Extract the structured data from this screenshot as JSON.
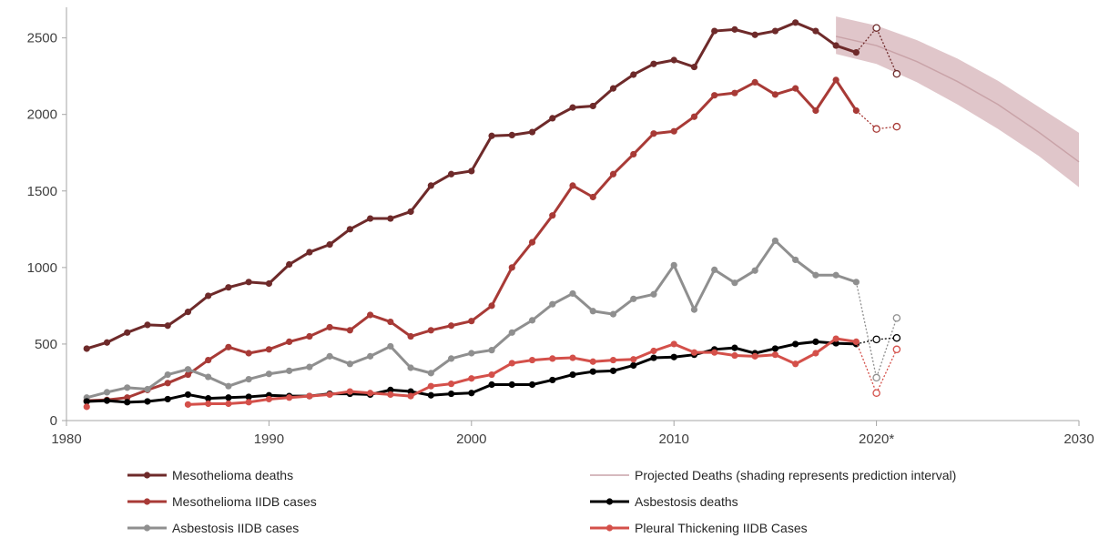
{
  "chart_data": {
    "type": "line",
    "title": "",
    "xlabel": "",
    "ylabel": "",
    "xlim": [
      1980,
      2030
    ],
    "ylim": [
      0,
      2700
    ],
    "x_ticks": [
      "1980",
      "1990",
      "2000",
      "2010",
      "2020*",
      "2030"
    ],
    "x_tick_values": [
      1980,
      1990,
      2000,
      2010,
      2020,
      2030
    ],
    "y_ticks": [
      "0",
      "500",
      "1000",
      "1500",
      "2000",
      "2500"
    ],
    "y_tick_values": [
      0,
      500,
      1000,
      1500,
      2000,
      2500
    ],
    "grid": false,
    "legend_position": "bottom",
    "series": [
      {
        "name": "Mesothelioma deaths",
        "color": "#6e2a2a",
        "x": [
          1981,
          1982,
          1983,
          1984,
          1985,
          1986,
          1987,
          1988,
          1989,
          1990,
          1991,
          1992,
          1993,
          1994,
          1995,
          1996,
          1997,
          1998,
          1999,
          2000,
          2001,
          2002,
          2003,
          2004,
          2005,
          2006,
          2007,
          2008,
          2009,
          2010,
          2011,
          2012,
          2013,
          2014,
          2015,
          2016,
          2017,
          2018,
          2019
        ],
        "values": [
          470,
          510,
          575,
          625,
          620,
          710,
          815,
          870,
          905,
          895,
          1020,
          1100,
          1150,
          1250,
          1320,
          1320,
          1365,
          1535,
          1610,
          1630,
          1860,
          1865,
          1885,
          1975,
          2045,
          2055,
          2170,
          2260,
          2330,
          2355,
          2310,
          2545,
          2555,
          2520,
          2545,
          2600,
          2545,
          2450,
          2405
        ],
        "provisional_x": [
          2020,
          2021
        ],
        "provisional_values": [
          2565,
          2265
        ]
      },
      {
        "name": "Mesothelioma IIDB cases",
        "color": "#a83a36",
        "x": [
          1981,
          1982,
          1983,
          1984,
          1985,
          1986,
          1987,
          1988,
          1989,
          1990,
          1991,
          1992,
          1993,
          1994,
          1995,
          1996,
          1997,
          1998,
          1999,
          2000,
          2001,
          2002,
          2003,
          2004,
          2005,
          2006,
          2007,
          2008,
          2009,
          2010,
          2011,
          2012,
          2013,
          2014,
          2015,
          2016,
          2017,
          2018,
          2019
        ],
        "values": [
          130,
          135,
          150,
          200,
          245,
          300,
          395,
          480,
          440,
          465,
          515,
          550,
          610,
          590,
          690,
          645,
          550,
          590,
          620,
          650,
          750,
          1000,
          1165,
          1340,
          1535,
          1460,
          1610,
          1740,
          1875,
          1890,
          1985,
          2125,
          2140,
          2210,
          2130,
          2170,
          2025,
          2225,
          2025
        ],
        "provisional_x": [
          2020,
          2021
        ],
        "provisional_values": [
          1905,
          1920
        ]
      },
      {
        "name": "Asbestosis IIDB cases",
        "color": "#8f8f8f",
        "x": [
          1981,
          1982,
          1983,
          1984,
          1985,
          1986,
          1987,
          1988,
          1989,
          1990,
          1991,
          1992,
          1993,
          1994,
          1995,
          1996,
          1997,
          1998,
          1999,
          2000,
          2001,
          2002,
          2003,
          2004,
          2005,
          2006,
          2007,
          2008,
          2009,
          2010,
          2011,
          2012,
          2013,
          2014,
          2015,
          2016,
          2017,
          2018,
          2019
        ],
        "values": [
          150,
          185,
          215,
          205,
          300,
          335,
          285,
          225,
          270,
          305,
          325,
          350,
          420,
          370,
          420,
          485,
          345,
          310,
          405,
          440,
          460,
          575,
          655,
          760,
          830,
          715,
          695,
          795,
          825,
          1015,
          725,
          985,
          900,
          980,
          1175,
          1050,
          950,
          950,
          905
        ],
        "provisional_x": [
          2020,
          2021
        ],
        "provisional_values": [
          280,
          670
        ]
      },
      {
        "name": "Asbestosis deaths",
        "color": "#000000",
        "x": [
          1981,
          1982,
          1983,
          1984,
          1985,
          1986,
          1987,
          1988,
          1989,
          1990,
          1991,
          1992,
          1993,
          1994,
          1995,
          1996,
          1997,
          1998,
          1999,
          2000,
          2001,
          2002,
          2003,
          2004,
          2005,
          2006,
          2007,
          2008,
          2009,
          2010,
          2011,
          2012,
          2013,
          2014,
          2015,
          2016,
          2017,
          2018,
          2019
        ],
        "values": [
          125,
          130,
          120,
          125,
          140,
          170,
          145,
          150,
          155,
          165,
          160,
          160,
          175,
          175,
          170,
          200,
          190,
          165,
          175,
          180,
          235,
          235,
          235,
          265,
          300,
          320,
          325,
          360,
          410,
          415,
          430,
          465,
          475,
          440,
          470,
          500,
          515,
          505,
          500
        ],
        "provisional_x": [
          2020,
          2021
        ],
        "provisional_values": [
          530,
          540
        ]
      },
      {
        "name": "Pleural Thickening IIDB Cases",
        "color": "#d4504a",
        "x": [
          1981,
          1982,
          1983,
          1984,
          1985,
          1986,
          1987,
          1988,
          1989,
          1990,
          1991,
          1992,
          1993,
          1994,
          1995,
          1996,
          1997,
          1998,
          1999,
          2000,
          2001,
          2002,
          2003,
          2004,
          2005,
          2006,
          2007,
          2008,
          2009,
          2010,
          2011,
          2012,
          2013,
          2014,
          2015,
          2016,
          2017,
          2018,
          2019
        ],
        "values": [
          90,
          null,
          null,
          null,
          null,
          105,
          110,
          110,
          120,
          140,
          150,
          160,
          170,
          190,
          180,
          170,
          160,
          225,
          240,
          275,
          300,
          375,
          395,
          405,
          410,
          385,
          395,
          400,
          455,
          500,
          445,
          445,
          425,
          420,
          430,
          370,
          440,
          535,
          515
        ],
        "provisional_x": [
          2020,
          2021
        ],
        "provisional_values": [
          180,
          465
        ]
      }
    ],
    "projection": {
      "name": "Projected Deaths (shading represents prediction interval)",
      "color": "#c9a3a8",
      "band_color": "#d6b3b8",
      "x": [
        2018,
        2020,
        2022,
        2024,
        2026,
        2028,
        2030
      ],
      "values": [
        2510,
        2450,
        2345,
        2215,
        2065,
        1885,
        1690
      ],
      "lower": [
        2395,
        2330,
        2210,
        2065,
        1905,
        1730,
        1525
      ],
      "upper": [
        2640,
        2580,
        2485,
        2365,
        2220,
        2050,
        1880
      ]
    }
  }
}
